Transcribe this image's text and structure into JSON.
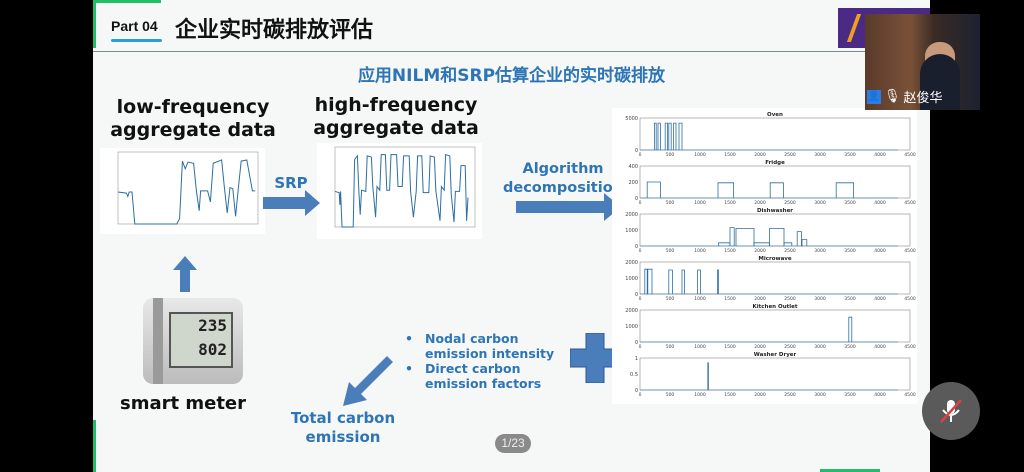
{
  "slide": {
    "part_label": "Part 04",
    "title": "企业实时碳排放评估",
    "subtitle": "应用NILM和SRP估算企业的实时碳排放",
    "low_freq_heading": "low-frequency aggregate data",
    "high_freq_heading": "high-frequency aggregate data",
    "srp_label": "SRP",
    "algorithm_label": "Algorithm decomposition",
    "smart_meter_label": "smart meter",
    "meter_display": [
      "235",
      "802"
    ],
    "bullets": [
      "Nodal carbon emission intensity",
      "Direct carbon emission factors"
    ],
    "total_label": "Total carbon emission",
    "accent_color": "#2e75b6"
  },
  "pager": "1/23",
  "video": {
    "participant_name": "赵俊华",
    "mic_state": "muted"
  },
  "chart_data": [
    {
      "type": "line",
      "name_hint": "low-frequency aggregate",
      "xlim": [
        0,
        1000
      ],
      "ylim": [
        0,
        6000
      ],
      "points": [
        [
          0,
          2900
        ],
        [
          60,
          2800
        ],
        [
          70,
          2500
        ],
        [
          80,
          2900
        ],
        [
          100,
          2900
        ],
        [
          120,
          0
        ],
        [
          420,
          0
        ],
        [
          440,
          500
        ],
        [
          460,
          5700
        ],
        [
          480,
          5000
        ],
        [
          500,
          5600
        ],
        [
          540,
          5500
        ],
        [
          560,
          3000
        ],
        [
          580,
          1200
        ],
        [
          590,
          3000
        ],
        [
          640,
          3000
        ],
        [
          660,
          2000
        ],
        [
          680,
          5500
        ],
        [
          740,
          5800
        ],
        [
          760,
          3300
        ],
        [
          780,
          1000
        ],
        [
          800,
          3300
        ],
        [
          820,
          3200
        ],
        [
          840,
          700
        ],
        [
          860,
          3300
        ],
        [
          880,
          5700
        ],
        [
          920,
          5800
        ],
        [
          960,
          3000
        ],
        [
          980,
          3000
        ]
      ]
    },
    {
      "type": "line",
      "name_hint": "high-frequency aggregate",
      "xlim": [
        0,
        10000
      ],
      "ylim": [
        0,
        6000
      ],
      "points": [
        [
          0,
          2900
        ],
        [
          300,
          2800
        ],
        [
          350,
          1800
        ],
        [
          400,
          2900
        ],
        [
          500,
          0
        ],
        [
          1300,
          0
        ],
        [
          1400,
          5500
        ],
        [
          1600,
          5800
        ],
        [
          1700,
          3000
        ],
        [
          1800,
          1000
        ],
        [
          1900,
          3000
        ],
        [
          2200,
          2900
        ],
        [
          2300,
          5800
        ],
        [
          2600,
          5700
        ],
        [
          2700,
          3300
        ],
        [
          2900,
          800
        ],
        [
          3000,
          3300
        ],
        [
          3200,
          3000
        ],
        [
          3300,
          5900
        ],
        [
          3600,
          5900
        ],
        [
          3700,
          3000
        ],
        [
          3900,
          3000
        ],
        [
          4000,
          5900
        ],
        [
          4400,
          5900
        ],
        [
          4500,
          3300
        ],
        [
          4800,
          3300
        ],
        [
          4900,
          5800
        ],
        [
          5300,
          5800
        ],
        [
          5400,
          2900
        ],
        [
          5600,
          800
        ],
        [
          5800,
          2900
        ],
        [
          5900,
          5800
        ],
        [
          6200,
          5800
        ],
        [
          6300,
          2800
        ],
        [
          6700,
          2800
        ],
        [
          6800,
          5800
        ],
        [
          7100,
          5700
        ],
        [
          7200,
          3000
        ],
        [
          7500,
          500
        ],
        [
          7600,
          3300
        ],
        [
          7800,
          3000
        ],
        [
          7900,
          5900
        ],
        [
          8200,
          5800
        ],
        [
          8300,
          2700
        ],
        [
          8500,
          400
        ],
        [
          8600,
          2900
        ],
        [
          8900,
          2900
        ],
        [
          9000,
          5000
        ],
        [
          9300,
          5000
        ],
        [
          9400,
          500
        ],
        [
          9500,
          2400
        ]
      ]
    },
    {
      "type": "subplots",
      "xlim": [
        0,
        4500
      ],
      "xticks": [
        0,
        500,
        1000,
        1500,
        2000,
        2500,
        3000,
        3500,
        4000,
        4500
      ],
      "panels": [
        {
          "title": "Oven",
          "ylim": [
            0,
            5000
          ],
          "yticks": [
            0,
            5000
          ],
          "pulses": [
            [
              240,
              270,
              4200
            ],
            [
              300,
              340,
              4200
            ],
            [
              420,
              460,
              4200
            ],
            [
              480,
              520,
              4200
            ],
            [
              560,
              600,
              4200
            ],
            [
              650,
              700,
              4200
            ]
          ]
        },
        {
          "title": "Fridge",
          "ylim": [
            0,
            400
          ],
          "yticks": [
            0,
            200,
            400
          ],
          "pulses": [
            [
              120,
              340,
              200
            ],
            [
              1300,
              1560,
              190
            ],
            [
              2170,
              2390,
              190
            ],
            [
              3270,
              3560,
              190
            ]
          ]
        },
        {
          "title": "Dishwasher",
          "ylim": [
            0,
            2000
          ],
          "yticks": [
            0,
            1000,
            2000
          ],
          "pulses": [
            [
              1310,
              1500,
              200
            ],
            [
              1500,
              1570,
              1150
            ],
            [
              1600,
              1900,
              1100
            ],
            [
              1900,
              2160,
              200
            ],
            [
              2160,
              2400,
              1100
            ],
            [
              2400,
              2530,
              200
            ],
            [
              2620,
              2690,
              900
            ],
            [
              2700,
              2780,
              400
            ]
          ]
        },
        {
          "title": "Microwave",
          "ylim": [
            0,
            2000
          ],
          "yticks": [
            0,
            1000,
            2000
          ],
          "pulses": [
            [
              80,
              120,
              1550
            ],
            [
              130,
              200,
              1550
            ],
            [
              480,
              540,
              1500
            ],
            [
              700,
              740,
              1500
            ],
            [
              960,
              1010,
              1500
            ],
            [
              1290,
              1310,
              1500
            ]
          ]
        },
        {
          "title": "Kitchen Outlet",
          "ylim": [
            0,
            2000
          ],
          "yticks": [
            0,
            1000,
            2000
          ],
          "pulses": [
            [
              3480,
              3530,
              1550
            ]
          ]
        },
        {
          "title": "Washer Dryer",
          "ylim": [
            0,
            1
          ],
          "yticks": [
            0,
            0.5,
            1
          ],
          "pulses": [
            [
              1130,
              1140,
              0.85
            ]
          ]
        }
      ]
    }
  ]
}
